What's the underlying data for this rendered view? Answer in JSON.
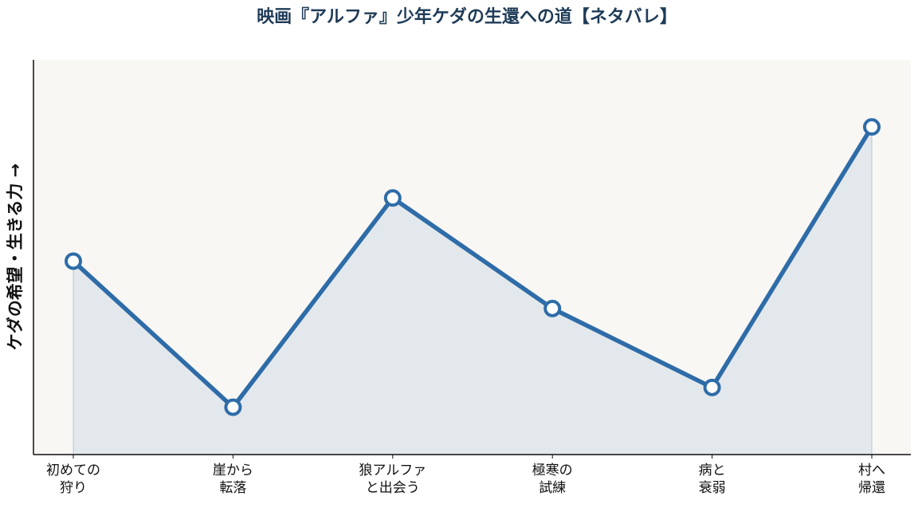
{
  "chart_data": {
    "type": "line",
    "title": "映画『アルファ』少年ケダの生還への道【ネタバレ】",
    "ylabel": "ケダの希望・生きる力 →",
    "categories": [
      "初めての\n狩り",
      "崖から\n転落",
      "狼アルファ\nと出会う",
      "極寒の\n試練",
      "病と\n衰弱",
      "村へ\n帰還"
    ],
    "values": [
      4.9,
      1.2,
      6.5,
      3.7,
      1.7,
      8.3
    ],
    "color": "#2e6ca8",
    "ylim": [
      0,
      10
    ]
  }
}
